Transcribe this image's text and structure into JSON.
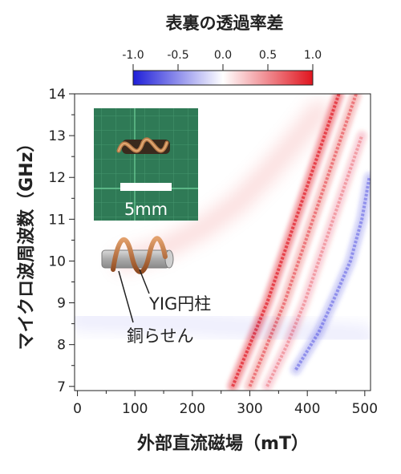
{
  "chart_data": {
    "type": "heatmap",
    "colorbar": {
      "title": "表裏の透過率差",
      "min": -1.0,
      "max": 1.0,
      "ticks": [
        "-1.0",
        "-0.5",
        "0.0",
        "0.5",
        "1.0"
      ],
      "colors": {
        "negative": "#1f1fd8",
        "zero": "#ffffff",
        "positive": "#e0141e"
      }
    },
    "xlabel": "外部直流磁場（mT）",
    "ylabel": "マイクロ波周波数（GHz）",
    "xlim": [
      -5,
      510
    ],
    "ylim": [
      6.9,
      14.0
    ],
    "x_ticks": [
      "0",
      "100",
      "200",
      "300",
      "400",
      "500"
    ],
    "y_ticks": [
      "7",
      "8",
      "9",
      "10",
      "11",
      "12",
      "13",
      "14"
    ],
    "bands": [
      {
        "sign": "positive",
        "strength": 0.85,
        "points": [
          [
            270,
            7.0
          ],
          [
            300,
            8.0
          ],
          [
            330,
            9.0
          ],
          [
            355,
            10.0
          ],
          [
            380,
            11.0
          ],
          [
            405,
            12.0
          ],
          [
            430,
            13.0
          ],
          [
            455,
            14.0
          ]
        ]
      },
      {
        "sign": "positive",
        "strength": 0.55,
        "points": [
          [
            300,
            7.0
          ],
          [
            330,
            8.0
          ],
          [
            360,
            9.0
          ],
          [
            385,
            10.0
          ],
          [
            410,
            11.0
          ],
          [
            435,
            12.0
          ],
          [
            460,
            13.0
          ],
          [
            485,
            14.0
          ]
        ]
      },
      {
        "sign": "positive",
        "strength": 0.35,
        "points": [
          [
            330,
            7.0
          ],
          [
            365,
            8.0
          ],
          [
            395,
            9.0
          ],
          [
            420,
            10.0
          ],
          [
            445,
            11.0
          ],
          [
            470,
            12.0
          ],
          [
            495,
            13.0
          ]
        ]
      },
      {
        "sign": "positive",
        "strength": 0.25,
        "points": [
          [
            80,
            10.0
          ],
          [
            150,
            10.3
          ],
          [
            220,
            10.8
          ],
          [
            280,
            11.4
          ],
          [
            330,
            12.1
          ],
          [
            380,
            12.9
          ],
          [
            420,
            13.6
          ]
        ]
      },
      {
        "sign": "negative",
        "strength": 0.45,
        "points": [
          [
            380,
            7.4
          ],
          [
            420,
            8.3
          ],
          [
            450,
            9.2
          ],
          [
            475,
            10.0
          ],
          [
            495,
            11.0
          ],
          [
            508,
            12.0
          ]
        ]
      },
      {
        "sign": "negative",
        "strength": 0.15,
        "points": [
          [
            0,
            8.6
          ],
          [
            100,
            8.55
          ],
          [
            200,
            8.5
          ],
          [
            300,
            8.4
          ],
          [
            400,
            8.3
          ],
          [
            500,
            8.2
          ]
        ]
      }
    ],
    "inset": {
      "scale_label": "5mm",
      "callouts": [
        {
          "label": "YIG円柱"
        },
        {
          "label": "銅らせん"
        }
      ]
    }
  }
}
